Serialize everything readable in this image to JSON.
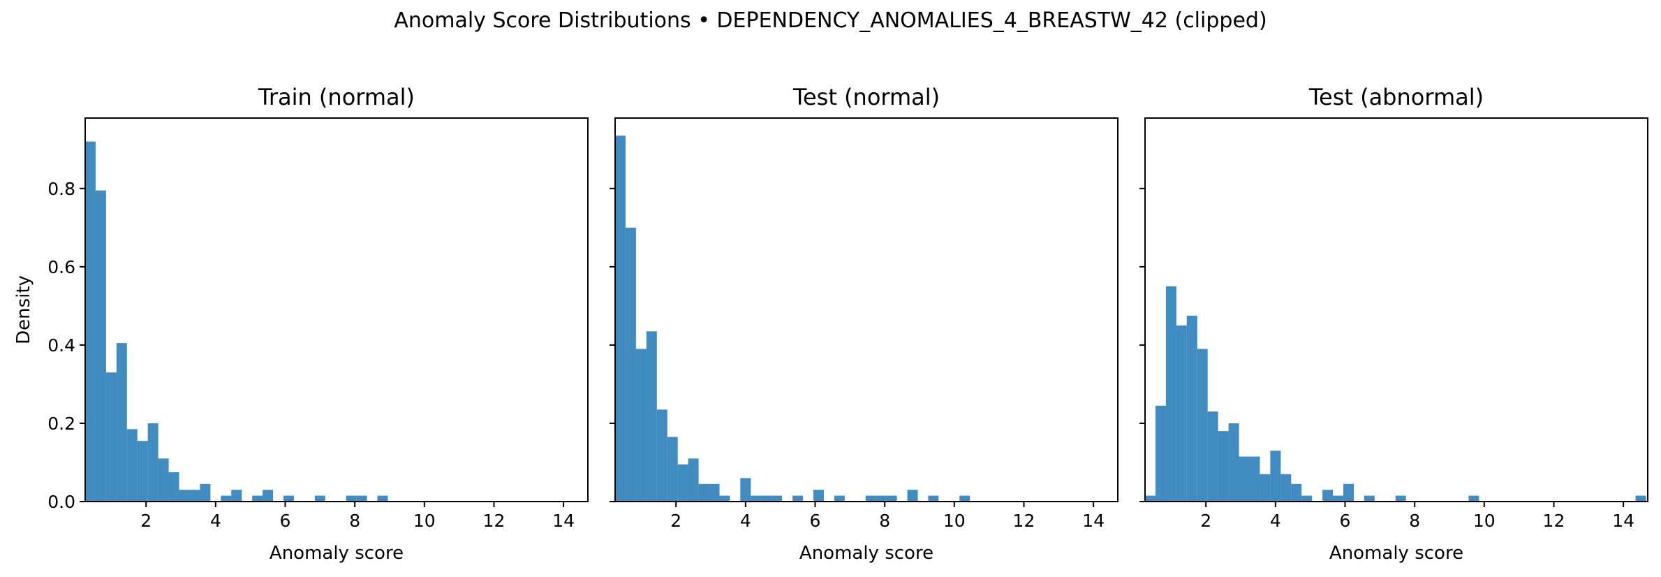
{
  "suptitle": "Anomaly Score Distributions • DEPENDENCY_ANOMALIES_4_BREASTW_42 (clipped)",
  "bar_color": "#1f77b4",
  "chart_data": [
    {
      "type": "bar",
      "title": "Train (normal)",
      "xlabel": "Anomaly score",
      "ylabel": "Density",
      "xlim": [
        0.25,
        14.7
      ],
      "ylim": [
        0,
        0.98
      ],
      "xticks": [
        2,
        4,
        6,
        8,
        10,
        12,
        14
      ],
      "yticks": [
        0.0,
        0.2,
        0.4,
        0.6,
        0.8
      ],
      "bin_start": 0.25,
      "bin_width": 0.3,
      "values": [
        0.92,
        0.795,
        0.33,
        0.405,
        0.185,
        0.155,
        0.2,
        0.11,
        0.075,
        0.03,
        0.03,
        0.045,
        0,
        0.015,
        0.03,
        0,
        0.015,
        0.03,
        0,
        0.015,
        0,
        0,
        0.015,
        0,
        0,
        0.015,
        0.015,
        0,
        0.015,
        0,
        0,
        0,
        0,
        0,
        0,
        0,
        0,
        0,
        0,
        0,
        0,
        0,
        0,
        0,
        0,
        0,
        0,
        0
      ]
    },
    {
      "type": "bar",
      "title": "Test (normal)",
      "xlabel": "Anomaly score",
      "ylabel": "",
      "xlim": [
        0.25,
        14.7
      ],
      "ylim": [
        0,
        0.98
      ],
      "xticks": [
        2,
        4,
        6,
        8,
        10,
        12,
        14
      ],
      "yticks": [
        0.0,
        0.2,
        0.4,
        0.6,
        0.8
      ],
      "bin_start": 0.25,
      "bin_width": 0.3,
      "values": [
        0.935,
        0.7,
        0.39,
        0.435,
        0.235,
        0.165,
        0.095,
        0.11,
        0.045,
        0.045,
        0.015,
        0,
        0.06,
        0.015,
        0.015,
        0.015,
        0,
        0.015,
        0,
        0.03,
        0,
        0.015,
        0,
        0,
        0.015,
        0.015,
        0.015,
        0,
        0.03,
        0,
        0.015,
        0,
        0,
        0.015,
        0,
        0,
        0,
        0,
        0,
        0,
        0,
        0,
        0,
        0,
        0,
        0,
        0,
        0
      ]
    },
    {
      "type": "bar",
      "title": "Test (abnormal)",
      "xlabel": "Anomaly score",
      "ylabel": "",
      "xlim": [
        0.25,
        14.7
      ],
      "ylim": [
        0,
        0.98
      ],
      "xticks": [
        2,
        4,
        6,
        8,
        10,
        12,
        14
      ],
      "yticks": [
        0.0,
        0.2,
        0.4,
        0.6,
        0.8
      ],
      "bin_start": 0.25,
      "bin_width": 0.3,
      "values": [
        0.015,
        0.245,
        0.55,
        0.45,
        0.475,
        0.39,
        0.23,
        0.18,
        0.2,
        0.115,
        0.115,
        0.07,
        0.13,
        0.07,
        0.045,
        0.015,
        0,
        0.03,
        0.015,
        0.045,
        0,
        0.015,
        0,
        0,
        0.015,
        0,
        0,
        0,
        0,
        0,
        0,
        0.015,
        0,
        0,
        0,
        0,
        0,
        0,
        0,
        0,
        0,
        0,
        0,
        0,
        0,
        0,
        0,
        0.015
      ]
    }
  ]
}
